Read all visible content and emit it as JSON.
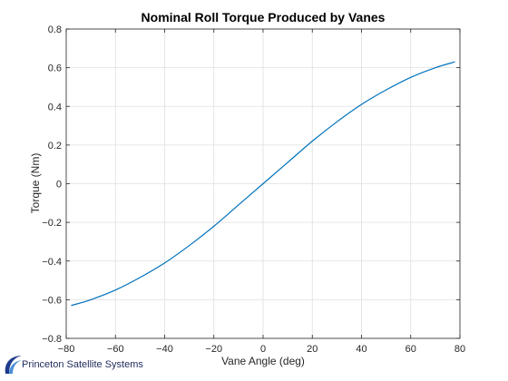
{
  "chart_data": {
    "type": "line",
    "title": "Nominal Roll Torque Produced by Vanes",
    "xlabel": "Vane Angle (deg)",
    "ylabel": "Torque (Nm)",
    "xlim": [
      -80,
      80
    ],
    "ylim": [
      -0.8,
      0.8
    ],
    "xticks": [
      -80,
      -60,
      -40,
      -20,
      0,
      20,
      40,
      60,
      80
    ],
    "yticks": [
      -0.8,
      -0.6,
      -0.4,
      -0.2,
      0,
      0.2,
      0.4,
      0.6,
      0.8
    ],
    "xtick_labels": [
      "−80",
      "−60",
      "−40",
      "−20",
      "0",
      "20",
      "40",
      "60",
      "80"
    ],
    "ytick_labels": [
      "−0.8",
      "−0.6",
      "−0.4",
      "−0.2",
      "0",
      "0.2",
      "0.4",
      "0.6",
      "0.8"
    ],
    "grid": true,
    "series": [
      {
        "color": "#0072bd",
        "x": [
          -78,
          -70,
          -60,
          -50,
          -40,
          -30,
          -20,
          -10,
          0,
          10,
          20,
          30,
          40,
          50,
          60,
          70,
          78
        ],
        "y": [
          -0.63,
          -0.6,
          -0.55,
          -0.485,
          -0.41,
          -0.32,
          -0.22,
          -0.11,
          0,
          0.11,
          0.22,
          0.32,
          0.41,
          0.485,
          0.55,
          0.6,
          0.63
        ]
      }
    ]
  },
  "logo": {
    "text": "Princeton Satellite Systems"
  }
}
